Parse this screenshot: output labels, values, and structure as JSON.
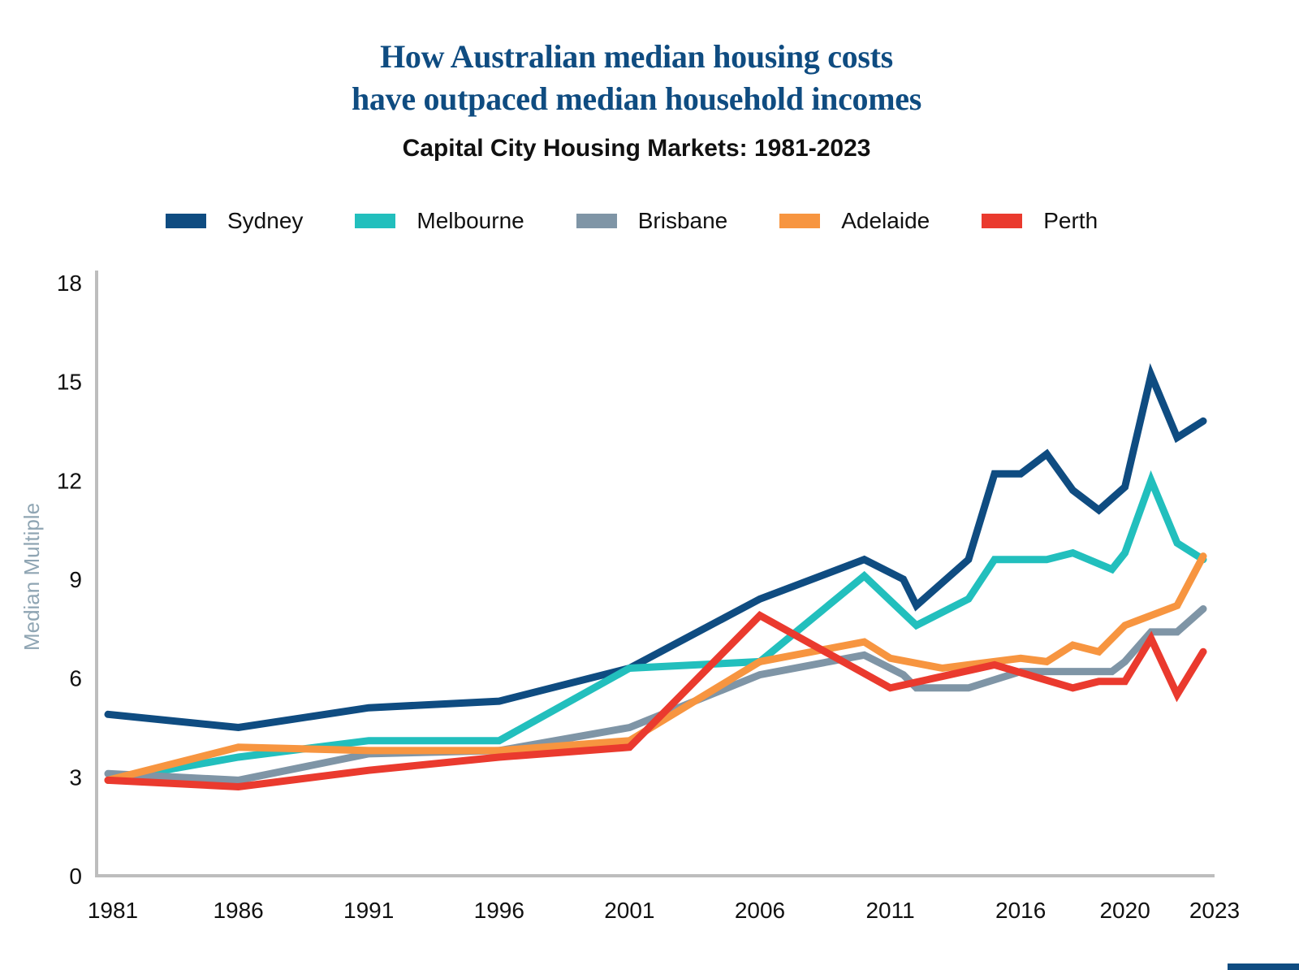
{
  "chart_data": {
    "type": "line",
    "title": "How Australian median housing costs have outpaced median household incomes",
    "title_lines": [
      "How Australian median housing costs",
      "have outpaced median household incomes"
    ],
    "subtitle": "Capital City Housing Markets: 1981-2023",
    "xlabel": "",
    "ylabel": "Median Multiple",
    "xlim": [
      1981,
      2023
    ],
    "ylim": [
      0,
      18
    ],
    "yticks": [
      0,
      3,
      6,
      9,
      12,
      15,
      18
    ],
    "xticks": [
      1981,
      1986,
      1991,
      1996,
      2001,
      2006,
      2011,
      2016,
      2020,
      2023
    ],
    "xtick_labels": [
      "1981",
      "1986",
      "1991",
      "1996",
      "2001",
      "2006",
      "2011",
      "2016",
      "2020",
      "2023"
    ],
    "grid": false,
    "legend_position": "top",
    "series": [
      {
        "name": "Sydney",
        "color": "#0f4c81",
        "x": [
          1981,
          1986,
          1991,
          1996,
          2001,
          2006,
          2010,
          2011.5,
          2012,
          2014,
          2015,
          2016,
          2017,
          2018,
          2019,
          2020,
          2021,
          2022,
          2023
        ],
        "values": [
          4.9,
          4.5,
          5.1,
          5.3,
          6.3,
          8.4,
          9.6,
          9.0,
          8.2,
          9.6,
          12.2,
          12.2,
          12.8,
          11.7,
          11.1,
          11.8,
          15.2,
          13.3,
          13.8
        ]
      },
      {
        "name": "Melbourne",
        "color": "#22bfbd",
        "x": [
          1981,
          1986,
          1991,
          1996,
          2001,
          2006,
          2010,
          2012,
          2014,
          2015,
          2016,
          2017,
          2018,
          2019.5,
          2020,
          2021,
          2022,
          2023
        ],
        "values": [
          2.9,
          3.6,
          4.1,
          4.1,
          6.3,
          6.5,
          9.1,
          7.6,
          8.4,
          9.6,
          9.6,
          9.6,
          9.8,
          9.3,
          9.8,
          12.0,
          10.1,
          9.6
        ]
      },
      {
        "name": "Brisbane",
        "color": "#7f95a6",
        "x": [
          1981,
          1986,
          1991,
          1996,
          2001,
          2006,
          2010,
          2011.5,
          2012,
          2014,
          2016,
          2019.5,
          2020,
          2021,
          2022,
          2023
        ],
        "values": [
          3.1,
          2.9,
          3.7,
          3.8,
          4.5,
          6.1,
          6.7,
          6.1,
          5.7,
          5.7,
          6.2,
          6.2,
          6.5,
          7.4,
          7.4,
          8.1
        ]
      },
      {
        "name": "Adelaide",
        "color": "#f79540",
        "x": [
          1981,
          1986,
          1991,
          1996,
          2001,
          2006,
          2010,
          2011,
          2013,
          2014,
          2016,
          2017,
          2018,
          2019,
          2020,
          2022,
          2023
        ],
        "values": [
          2.9,
          3.9,
          3.8,
          3.8,
          4.1,
          6.5,
          7.1,
          6.6,
          6.3,
          6.4,
          6.6,
          6.5,
          7.0,
          6.8,
          7.6,
          8.2,
          9.7
        ]
      },
      {
        "name": "Perth",
        "color": "#ea3a2e",
        "x": [
          1981,
          1986,
          1991,
          1996,
          2001,
          2006,
          2011,
          2015,
          2018,
          2019,
          2020,
          2021,
          2022,
          2023
        ],
        "values": [
          2.9,
          2.7,
          3.2,
          3.6,
          3.9,
          7.9,
          5.7,
          6.4,
          5.7,
          5.9,
          5.9,
          7.2,
          5.5,
          6.8
        ]
      }
    ]
  }
}
